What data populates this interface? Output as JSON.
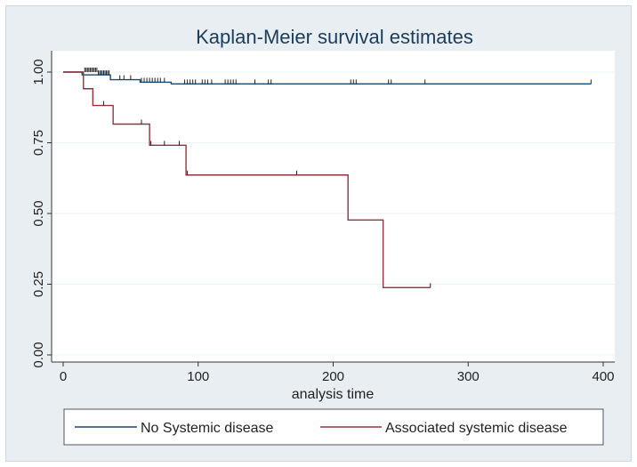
{
  "chart_data": {
    "type": "line",
    "title": "Kaplan-Meier survival estimates",
    "xlabel": "analysis time",
    "ylabel": "",
    "xlim": [
      0,
      400
    ],
    "ylim": [
      0,
      1
    ],
    "x_ticks": [
      0,
      100,
      200,
      300,
      400
    ],
    "y_ticks": [
      0.0,
      0.25,
      0.5,
      0.75,
      1.0
    ],
    "y_tick_labels": [
      "0.00",
      "0.25",
      "0.50",
      "0.75",
      "1.00"
    ],
    "legend_position": "bottom",
    "series": [
      {
        "name": "No Systemic disease",
        "color": "#1a476f",
        "steps": [
          [
            0,
            1.0
          ],
          [
            14,
            0.99
          ],
          [
            35,
            0.973
          ],
          [
            57,
            0.964
          ],
          [
            80,
            0.958
          ],
          [
            391,
            0.958
          ]
        ],
        "censored": [
          [
            16,
            1.0
          ],
          [
            17,
            1.0
          ],
          [
            18,
            1.0
          ],
          [
            19,
            1.0
          ],
          [
            20,
            1.0
          ],
          [
            21,
            1.0
          ],
          [
            22,
            1.0
          ],
          [
            23,
            1.0
          ],
          [
            24,
            1.0
          ],
          [
            25,
            1.0
          ],
          [
            26,
            0.99
          ],
          [
            27,
            0.99
          ],
          [
            28,
            0.99
          ],
          [
            29,
            0.99
          ],
          [
            30,
            0.99
          ],
          [
            31,
            0.99
          ],
          [
            32,
            0.99
          ],
          [
            33,
            0.99
          ],
          [
            34,
            0.99
          ],
          [
            42,
            0.973
          ],
          [
            45,
            0.973
          ],
          [
            50,
            0.973
          ],
          [
            58,
            0.964
          ],
          [
            60,
            0.964
          ],
          [
            62,
            0.964
          ],
          [
            64,
            0.964
          ],
          [
            66,
            0.964
          ],
          [
            68,
            0.964
          ],
          [
            70,
            0.964
          ],
          [
            72,
            0.964
          ],
          [
            75,
            0.964
          ],
          [
            90,
            0.958
          ],
          [
            92,
            0.958
          ],
          [
            94,
            0.958
          ],
          [
            96,
            0.958
          ],
          [
            98,
            0.958
          ],
          [
            103,
            0.958
          ],
          [
            105,
            0.958
          ],
          [
            107,
            0.958
          ],
          [
            110,
            0.958
          ],
          [
            120,
            0.958
          ],
          [
            122,
            0.958
          ],
          [
            124,
            0.958
          ],
          [
            126,
            0.958
          ],
          [
            128,
            0.958
          ],
          [
            142,
            0.958
          ],
          [
            152,
            0.958
          ],
          [
            154,
            0.958
          ],
          [
            213,
            0.958
          ],
          [
            215,
            0.958
          ],
          [
            217,
            0.958
          ],
          [
            241,
            0.958
          ],
          [
            243,
            0.958
          ],
          [
            268,
            0.958
          ],
          [
            391,
            0.958
          ]
        ]
      },
      {
        "name": "Associated systemic disease",
        "color": "#90353b",
        "steps": [
          [
            0,
            1.0
          ],
          [
            15,
            0.941
          ],
          [
            22,
            0.882
          ],
          [
            37,
            0.816
          ],
          [
            64,
            0.741
          ],
          [
            91,
            0.636
          ],
          [
            211,
            0.477
          ],
          [
            237,
            0.238
          ],
          [
            272,
            0.238
          ]
        ],
        "censored": [
          [
            30,
            0.882
          ],
          [
            58,
            0.816
          ],
          [
            65,
            0.741
          ],
          [
            75,
            0.741
          ],
          [
            86,
            0.741
          ],
          [
            92,
            0.636
          ],
          [
            173,
            0.636
          ],
          [
            272,
            0.238
          ]
        ]
      }
    ]
  }
}
